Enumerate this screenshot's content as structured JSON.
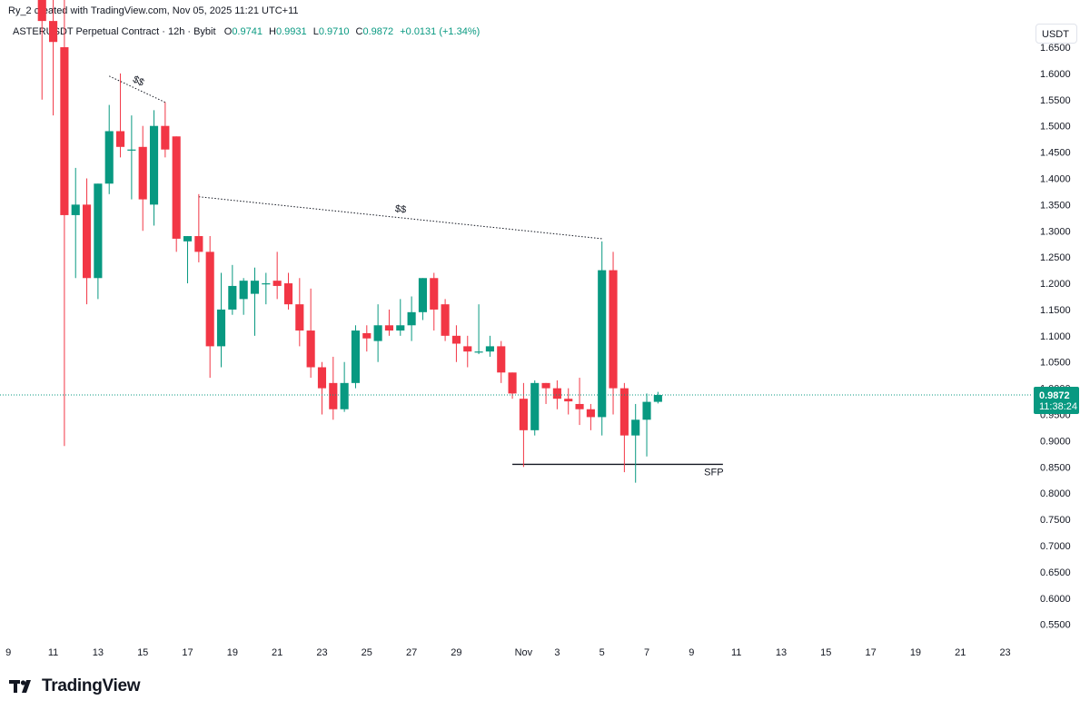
{
  "header": {
    "credit": "Ry_2 created with TradingView.com, Nov 05, 2025 11:21 UTC+11",
    "symbol": "ASTERUSDT Perpetual Contract · 12h · Bybit",
    "ohlc": [
      {
        "key": "O",
        "value": "0.9741"
      },
      {
        "key": "H",
        "value": "0.9931"
      },
      {
        "key": "L",
        "value": "0.9710"
      },
      {
        "key": "C",
        "value": "0.9872"
      }
    ],
    "change": "+0.0131 (+1.34%)"
  },
  "unit_button": "USDT",
  "brand": "TradingView",
  "price_label": {
    "price": "0.9872",
    "countdown": "11:38:24"
  },
  "colors": {
    "up": "#089981",
    "down": "#f23645",
    "text": "#131722",
    "annotation": "#131722"
  },
  "chart_data": {
    "type": "candlestick",
    "interval": "12h",
    "ylim": [
      0.52,
      1.74
    ],
    "y_ticks": [
      "1.6500",
      "1.6000",
      "1.5500",
      "1.5000",
      "1.4500",
      "1.4000",
      "1.3500",
      "1.3000",
      "1.2500",
      "1.2000",
      "1.1500",
      "1.1000",
      "1.0500",
      "1.0000",
      "0.9500",
      "0.9000",
      "0.8500",
      "0.8000",
      "0.7500",
      "0.7000",
      "0.6500",
      "0.6000",
      "0.5500"
    ],
    "x_ticks": [
      "9",
      "11",
      "13",
      "15",
      "17",
      "19",
      "21",
      "23",
      "25",
      "27",
      "29",
      "Nov",
      "3",
      "5",
      "7",
      "9",
      "11",
      "13",
      "15",
      "17",
      "19",
      "21",
      "23"
    ],
    "x_tick_slot": [
      -3,
      1,
      5,
      9,
      13,
      17,
      21,
      25,
      29,
      33,
      37,
      43,
      46,
      50,
      54,
      58,
      62,
      66,
      70,
      74,
      78,
      82,
      86
    ],
    "slot_range": [
      -3.75,
      87.9
    ],
    "last_price": 0.9872,
    "candles": [
      {
        "o": 1.74,
        "h": 1.78,
        "l": 1.55,
        "c": 1.7
      },
      {
        "o": 1.7,
        "h": 1.76,
        "l": 1.52,
        "c": 1.66
      },
      {
        "o": 1.65,
        "h": 1.77,
        "l": 0.89,
        "c": 1.33
      },
      {
        "o": 1.33,
        "h": 1.42,
        "l": 1.21,
        "c": 1.35
      },
      {
        "o": 1.35,
        "h": 1.4,
        "l": 1.16,
        "c": 1.21
      },
      {
        "o": 1.21,
        "h": 1.39,
        "l": 1.17,
        "c": 1.39
      },
      {
        "o": 1.39,
        "h": 1.54,
        "l": 1.37,
        "c": 1.49
      },
      {
        "o": 1.49,
        "h": 1.6,
        "l": 1.44,
        "c": 1.46
      },
      {
        "o": 1.455,
        "h": 1.52,
        "l": 1.36,
        "c": 1.455
      },
      {
        "o": 1.46,
        "h": 1.5,
        "l": 1.3,
        "c": 1.36
      },
      {
        "o": 1.35,
        "h": 1.53,
        "l": 1.31,
        "c": 1.5
      },
      {
        "o": 1.5,
        "h": 1.545,
        "l": 1.44,
        "c": 1.455
      },
      {
        "o": 1.48,
        "h": 1.48,
        "l": 1.26,
        "c": 1.285
      },
      {
        "o": 1.28,
        "h": 1.29,
        "l": 1.2,
        "c": 1.29
      },
      {
        "o": 1.29,
        "h": 1.37,
        "l": 1.24,
        "c": 1.26
      },
      {
        "o": 1.26,
        "h": 1.29,
        "l": 1.02,
        "c": 1.08
      },
      {
        "o": 1.08,
        "h": 1.22,
        "l": 1.04,
        "c": 1.15
      },
      {
        "o": 1.15,
        "h": 1.235,
        "l": 1.14,
        "c": 1.195
      },
      {
        "o": 1.17,
        "h": 1.21,
        "l": 1.14,
        "c": 1.205
      },
      {
        "o": 1.18,
        "h": 1.23,
        "l": 1.1,
        "c": 1.205
      },
      {
        "o": 1.2,
        "h": 1.22,
        "l": 1.16,
        "c": 1.2
      },
      {
        "o": 1.205,
        "h": 1.26,
        "l": 1.17,
        "c": 1.195
      },
      {
        "o": 1.2,
        "h": 1.22,
        "l": 1.15,
        "c": 1.16
      },
      {
        "o": 1.16,
        "h": 1.21,
        "l": 1.08,
        "c": 1.11
      },
      {
        "o": 1.11,
        "h": 1.19,
        "l": 1.02,
        "c": 1.04
      },
      {
        "o": 1.04,
        "h": 1.05,
        "l": 0.95,
        "c": 1.0
      },
      {
        "o": 1.01,
        "h": 1.06,
        "l": 0.94,
        "c": 0.96
      },
      {
        "o": 0.96,
        "h": 1.05,
        "l": 0.955,
        "c": 1.01
      },
      {
        "o": 1.01,
        "h": 1.12,
        "l": 1.0,
        "c": 1.11
      },
      {
        "o": 1.105,
        "h": 1.12,
        "l": 1.07,
        "c": 1.095
      },
      {
        "o": 1.09,
        "h": 1.16,
        "l": 1.05,
        "c": 1.12
      },
      {
        "o": 1.12,
        "h": 1.15,
        "l": 1.1,
        "c": 1.11
      },
      {
        "o": 1.11,
        "h": 1.17,
        "l": 1.1,
        "c": 1.12
      },
      {
        "o": 1.12,
        "h": 1.175,
        "l": 1.09,
        "c": 1.145
      },
      {
        "o": 1.145,
        "h": 1.21,
        "l": 1.13,
        "c": 1.21
      },
      {
        "o": 1.21,
        "h": 1.22,
        "l": 1.11,
        "c": 1.15
      },
      {
        "o": 1.16,
        "h": 1.17,
        "l": 1.09,
        "c": 1.1
      },
      {
        "o": 1.1,
        "h": 1.12,
        "l": 1.05,
        "c": 1.085
      },
      {
        "o": 1.08,
        "h": 1.1,
        "l": 1.04,
        "c": 1.07
      },
      {
        "o": 1.07,
        "h": 1.16,
        "l": 1.065,
        "c": 1.07
      },
      {
        "o": 1.07,
        "h": 1.1,
        "l": 1.06,
        "c": 1.08
      },
      {
        "o": 1.08,
        "h": 1.09,
        "l": 1.01,
        "c": 1.03
      },
      {
        "o": 1.03,
        "h": 1.03,
        "l": 0.98,
        "c": 0.99
      },
      {
        "o": 0.98,
        "h": 1.01,
        "l": 0.85,
        "c": 0.92
      },
      {
        "o": 0.92,
        "h": 1.015,
        "l": 0.91,
        "c": 1.01
      },
      {
        "o": 1.01,
        "h": 1.01,
        "l": 0.97,
        "c": 1.0
      },
      {
        "o": 1.0,
        "h": 1.015,
        "l": 0.96,
        "c": 0.98
      },
      {
        "o": 0.98,
        "h": 1.0,
        "l": 0.95,
        "c": 0.975
      },
      {
        "o": 0.97,
        "h": 1.02,
        "l": 0.93,
        "c": 0.96
      },
      {
        "o": 0.96,
        "h": 0.97,
        "l": 0.92,
        "c": 0.945
      },
      {
        "o": 0.945,
        "h": 1.28,
        "l": 0.91,
        "c": 1.225
      },
      {
        "o": 1.225,
        "h": 1.26,
        "l": 0.95,
        "c": 1.0
      },
      {
        "o": 1.0,
        "h": 1.01,
        "l": 0.84,
        "c": 0.91
      },
      {
        "o": 0.91,
        "h": 0.97,
        "l": 0.82,
        "c": 0.94
      },
      {
        "o": 0.94,
        "h": 0.99,
        "l": 0.87,
        "c": 0.9741
      },
      {
        "o": 0.9741,
        "h": 0.9931,
        "l": 0.971,
        "c": 0.9872
      }
    ],
    "annotations": [
      {
        "label": "$$",
        "from_slot": 6,
        "from_price": 1.595,
        "to_slot": 11,
        "to_price": 1.545
      },
      {
        "label": "$$",
        "from_slot": 14,
        "from_price": 1.365,
        "to_slot": 50,
        "to_price": 1.285
      },
      {
        "label": "SFP",
        "from_slot": 42,
        "from_price": 0.855,
        "to_slot": 60.8,
        "to_price": 0.855
      }
    ]
  }
}
